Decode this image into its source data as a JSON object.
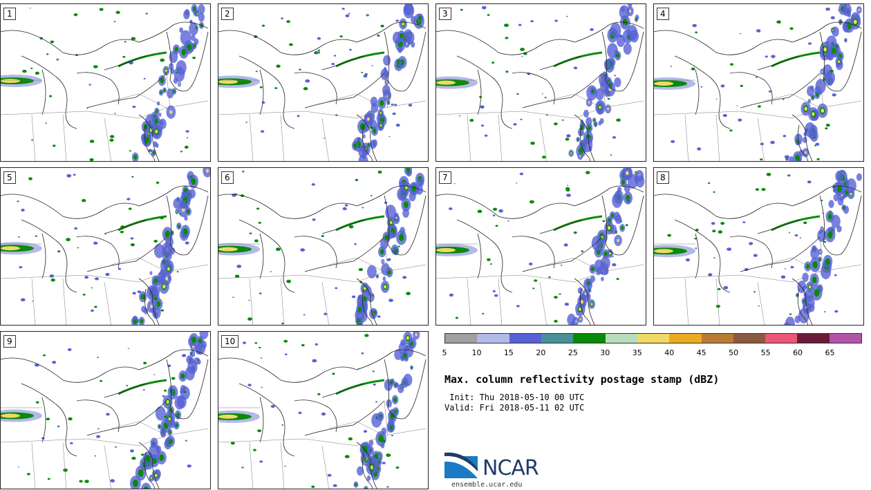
{
  "panels": [
    {
      "label": "1"
    },
    {
      "label": "2"
    },
    {
      "label": "3"
    },
    {
      "label": "4"
    },
    {
      "label": "5"
    },
    {
      "label": "6"
    },
    {
      "label": "7"
    },
    {
      "label": "8"
    },
    {
      "label": "9"
    },
    {
      "label": "10"
    }
  ],
  "colorbar": {
    "ticks": [
      "5",
      "10",
      "15",
      "20",
      "25",
      "30",
      "35",
      "40",
      "45",
      "50",
      "55",
      "60",
      "65"
    ],
    "colors": [
      "#a0a0a0",
      "#b3b9e8",
      "#5662d4",
      "#4a9099",
      "#0a8a0a",
      "#b8dcbb",
      "#f0d966",
      "#ecaa22",
      "#b87a35",
      "#8c5a40",
      "#ec5678",
      "#6a1a3a",
      "#b255a8"
    ]
  },
  "title": "Max. column reflectivity postage stamp (dBZ)",
  "init_line": " Init: Thu 2018-05-10 00 UTC",
  "valid_line": "Valid: Fri 2018-05-11 02 UTC",
  "logo": {
    "text": "NCAR",
    "url": "ensemble.ucar.edu"
  }
}
